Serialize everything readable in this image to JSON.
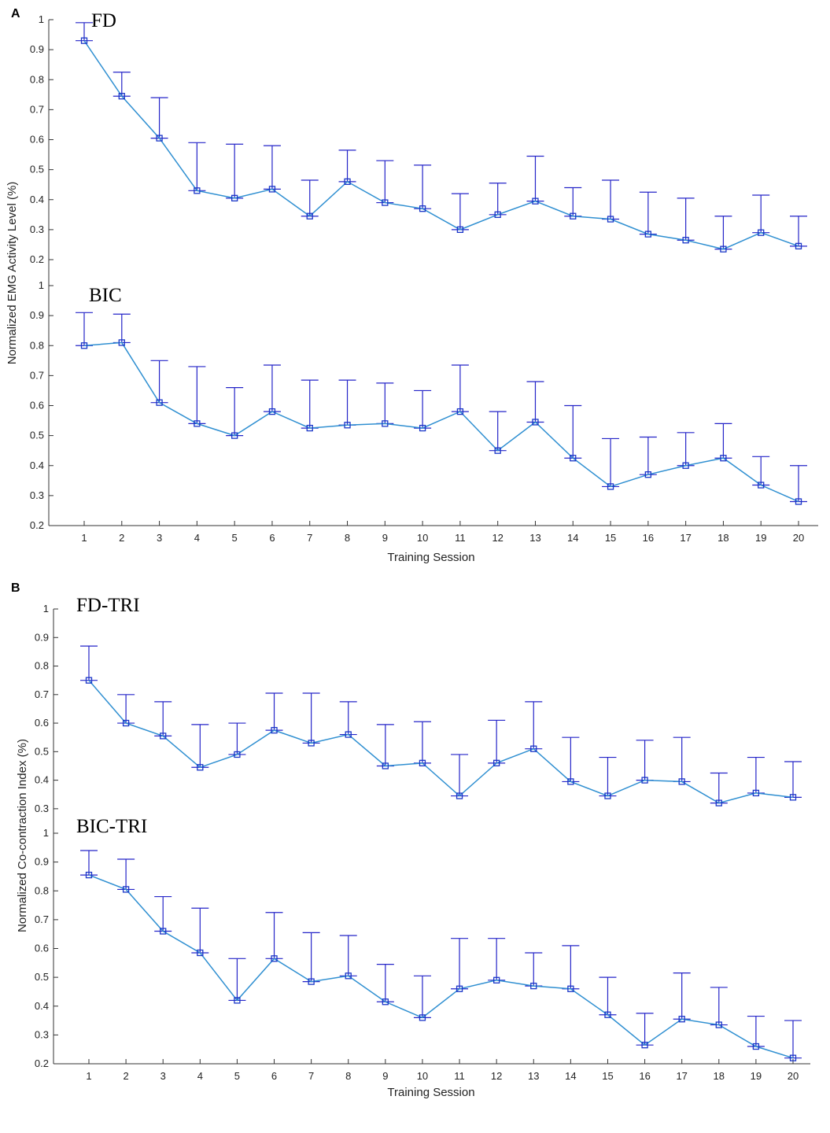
{
  "colors": {
    "line": "#2f8fd1",
    "marker": "#1a36c8",
    "errorbar": "#2424c8",
    "axis": "#333333"
  },
  "chart_data": [
    {
      "panel": "A",
      "type": "line",
      "xlabel": "Training Session",
      "ylabel": "Normalized EMG Activity Level (%)",
      "x": [
        1,
        2,
        3,
        4,
        5,
        6,
        7,
        8,
        9,
        10,
        11,
        12,
        13,
        14,
        15,
        16,
        17,
        18,
        19,
        20
      ],
      "subplots": [
        {
          "title": "FD",
          "ylim": [
            0.2,
            1
          ],
          "yticks": [
            "0.2",
            "0.3",
            "0.4",
            "0.5",
            "0.6",
            "0.7",
            "0.8",
            "0.9",
            "1"
          ],
          "values": [
            0.93,
            0.745,
            0.605,
            0.43,
            0.405,
            0.435,
            0.345,
            0.46,
            0.39,
            0.37,
            0.3,
            0.35,
            0.395,
            0.345,
            0.335,
            0.285,
            0.265,
            0.235,
            0.29,
            0.245
          ],
          "err_upper": [
            0.99,
            0.825,
            0.74,
            0.59,
            0.585,
            0.58,
            0.465,
            0.565,
            0.53,
            0.515,
            0.42,
            0.455,
            0.545,
            0.44,
            0.465,
            0.425,
            0.405,
            0.345,
            0.415,
            0.345
          ]
        },
        {
          "title": "BIC",
          "ylim": [
            0.2,
            1
          ],
          "yticks": [
            "0.2",
            "0.3",
            "0.4",
            "0.5",
            "0.6",
            "0.7",
            "0.8",
            "0.9",
            "1"
          ],
          "values": [
            0.8,
            0.81,
            0.61,
            0.54,
            0.5,
            0.58,
            0.525,
            0.535,
            0.54,
            0.525,
            0.58,
            0.45,
            0.545,
            0.425,
            0.33,
            0.37,
            0.4,
            0.425,
            0.335,
            0.28
          ],
          "err_upper": [
            0.91,
            0.905,
            0.75,
            0.73,
            0.66,
            0.735,
            0.685,
            0.685,
            0.675,
            0.65,
            0.735,
            0.58,
            0.68,
            0.6,
            0.49,
            0.495,
            0.51,
            0.54,
            0.43,
            0.4
          ]
        }
      ]
    },
    {
      "panel": "B",
      "type": "line",
      "xlabel": "Training Session",
      "ylabel": "Normalized Co-contraction Index (%)",
      "x": [
        1,
        2,
        3,
        4,
        5,
        6,
        7,
        8,
        9,
        10,
        11,
        12,
        13,
        14,
        15,
        16,
        17,
        18,
        19,
        20
      ],
      "subplots": [
        {
          "title": "FD-TRI",
          "ylim": [
            0.25,
            1
          ],
          "yticks": [
            "0.3",
            "0.4",
            "0.5",
            "0.6",
            "0.7",
            "0.8",
            "0.9",
            "1"
          ],
          "values": [
            0.75,
            0.6,
            0.555,
            0.445,
            0.49,
            0.575,
            0.53,
            0.56,
            0.45,
            0.46,
            0.345,
            0.46,
            0.51,
            0.395,
            0.345,
            0.4,
            0.395,
            0.32,
            0.355,
            0.34
          ],
          "err_upper": [
            0.87,
            0.7,
            0.675,
            0.595,
            0.6,
            0.705,
            0.705,
            0.675,
            0.595,
            0.605,
            0.49,
            0.61,
            0.675,
            0.55,
            0.48,
            0.54,
            0.55,
            0.425,
            0.48,
            0.465
          ]
        },
        {
          "title": "BIC-TRI",
          "ylim": [
            0.2,
            1
          ],
          "yticks": [
            "0.2",
            "0.3",
            "0.4",
            "0.5",
            "0.6",
            "0.7",
            "0.8",
            "0.9",
            "1"
          ],
          "values": [
            0.855,
            0.805,
            0.66,
            0.585,
            0.42,
            0.565,
            0.485,
            0.505,
            0.415,
            0.36,
            0.46,
            0.49,
            0.47,
            0.46,
            0.37,
            0.265,
            0.355,
            0.335,
            0.26,
            0.22
          ],
          "err_upper": [
            0.94,
            0.91,
            0.78,
            0.74,
            0.565,
            0.725,
            0.655,
            0.645,
            0.545,
            0.505,
            0.635,
            0.635,
            0.585,
            0.61,
            0.5,
            0.375,
            0.515,
            0.465,
            0.365,
            0.35
          ]
        }
      ]
    }
  ]
}
